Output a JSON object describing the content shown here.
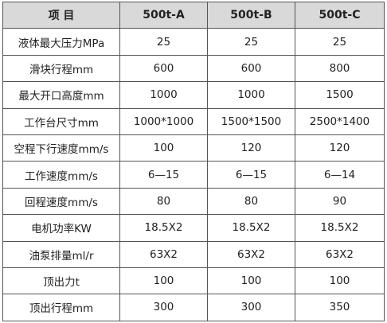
{
  "table": {
    "header": [
      "项 目",
      "500t-A",
      "500t-B",
      "500t-C"
    ],
    "rows": [
      [
        "液体最大压力MPa",
        "25",
        "25",
        "25"
      ],
      [
        "滑块行程mm",
        "600",
        "600",
        "800"
      ],
      [
        "最大开口高度mm",
        "1000",
        "1000",
        "1500"
      ],
      [
        "工作台尺寸mm",
        "1000*1000",
        "1500*1500",
        "2500*1400"
      ],
      [
        "空程下行速度mm/s",
        "100",
        "120",
        "120"
      ],
      [
        "工作速度mm/s",
        "6—15",
        "6—15",
        "6—14"
      ],
      [
        "回程速度mm/s",
        "80",
        "80",
        "90"
      ],
      [
        "电机功率KW",
        "18.5X2",
        "18.5X2",
        "18.5X2"
      ],
      [
        "油泵排量ml/r",
        "63X2",
        "63X2",
        "63X2"
      ],
      [
        "顶出力t",
        "100",
        "100",
        "100"
      ],
      [
        "顶出行程mm",
        "300",
        "300",
        "350"
      ]
    ]
  }
}
